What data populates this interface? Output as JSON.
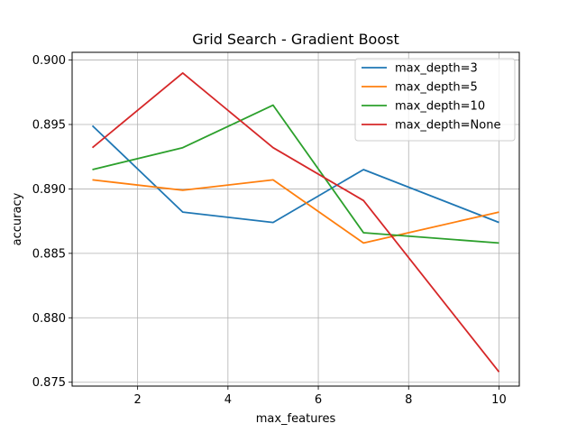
{
  "chart_data": {
    "type": "line",
    "title": "Grid Search - Gradient Boost",
    "xlabel": "max_features",
    "ylabel": "accuracy",
    "x": [
      1,
      3,
      5,
      7,
      10
    ],
    "xlim": [
      0.55,
      10.45
    ],
    "ylim": [
      0.8747,
      0.9006
    ],
    "xticks": [
      2,
      4,
      6,
      8,
      10
    ],
    "xtick_labels": [
      "2",
      "4",
      "6",
      "8",
      "10"
    ],
    "yticks": [
      0.875,
      0.88,
      0.885,
      0.89,
      0.895,
      0.9
    ],
    "ytick_labels": [
      "0.875",
      "0.880",
      "0.885",
      "0.890",
      "0.895",
      "0.900"
    ],
    "grid": true,
    "legend_position": "upper right",
    "series": [
      {
        "name": "max_depth=3",
        "color": "#1f77b4",
        "values": [
          0.8949,
          0.8882,
          0.8874,
          0.8915,
          0.8874
        ]
      },
      {
        "name": "max_depth=5",
        "color": "#ff7f0e",
        "values": [
          0.8907,
          0.8899,
          0.8907,
          0.8858,
          0.8882
        ]
      },
      {
        "name": "max_depth=10",
        "color": "#2ca02c",
        "values": [
          0.8915,
          0.8932,
          0.8965,
          0.8866,
          0.8858
        ]
      },
      {
        "name": "max_depth=None",
        "color": "#d62728",
        "values": [
          0.8932,
          0.899,
          0.8932,
          0.8891,
          0.8758
        ]
      }
    ]
  }
}
